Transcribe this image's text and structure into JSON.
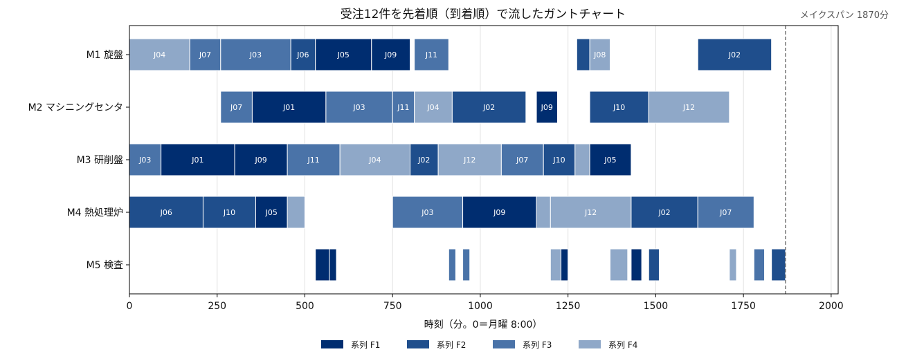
{
  "chart_data": {
    "type": "gantt",
    "title": "受注12件を先着順（到着順）で流したガントチャート",
    "xlabel": "時刻（分。0＝月曜 8:00）",
    "ylabel": "",
    "xlim": [
      0,
      2020
    ],
    "x_ticks": [
      0,
      250,
      500,
      750,
      1000,
      1250,
      1500,
      1750,
      2000
    ],
    "x_tick_labels": [
      "0",
      "250",
      "500",
      "750",
      "1000",
      "1250",
      "1500",
      "1750",
      "2000"
    ],
    "grid": "vertical",
    "legend_position": "bottom-center",
    "makespan": 1870,
    "makespan_label": "メイクスパン 1870分",
    "families": [
      {
        "id": "F1",
        "name": "系列 F1",
        "color": "#002d70",
        "text_color": "#ffffff"
      },
      {
        "id": "F2",
        "name": "系列 F2",
        "color": "#1f4e8c",
        "text_color": "#ffffff"
      },
      {
        "id": "F3",
        "name": "系列 F3",
        "color": "#4a73a8",
        "text_color": "#ffffff"
      },
      {
        "id": "F4",
        "name": "系列 F4",
        "color": "#8fa8c8",
        "text_color": "#ffffff"
      }
    ],
    "machines": [
      {
        "name": "M1 旋盤",
        "tasks": [
          {
            "job": "J04",
            "family": "F4",
            "start": 0,
            "end": 172
          },
          {
            "job": "J07",
            "family": "F3",
            "start": 172,
            "end": 260
          },
          {
            "job": "J03",
            "family": "F3",
            "start": 260,
            "end": 460
          },
          {
            "job": "J06",
            "family": "F2",
            "start": 460,
            "end": 530
          },
          {
            "job": "J05",
            "family": "F1",
            "start": 530,
            "end": 690
          },
          {
            "job": "J09",
            "family": "F1",
            "start": 690,
            "end": 800
          },
          {
            "job": "J11",
            "family": "F3",
            "start": 812,
            "end": 910
          },
          {
            "job": "",
            "family": "F2",
            "start": 1275,
            "end": 1312
          },
          {
            "job": "J08",
            "family": "F4",
            "start": 1312,
            "end": 1370
          },
          {
            "job": "J02",
            "family": "F2",
            "start": 1620,
            "end": 1830
          }
        ]
      },
      {
        "name": "M2 マシニングセンタ",
        "tasks": [
          {
            "job": "J07",
            "family": "F3",
            "start": 260,
            "end": 350
          },
          {
            "job": "J01",
            "family": "F1",
            "start": 350,
            "end": 560
          },
          {
            "job": "J03",
            "family": "F3",
            "start": 560,
            "end": 750
          },
          {
            "job": "J11",
            "family": "F3",
            "start": 750,
            "end": 812
          },
          {
            "job": "J04",
            "family": "F4",
            "start": 812,
            "end": 920
          },
          {
            "job": "J02",
            "family": "F2",
            "start": 920,
            "end": 1130
          },
          {
            "job": "J09",
            "family": "F1",
            "start": 1160,
            "end": 1220
          },
          {
            "job": "J10",
            "family": "F2",
            "start": 1312,
            "end": 1480
          },
          {
            "job": "J12",
            "family": "F4",
            "start": 1480,
            "end": 1710
          }
        ]
      },
      {
        "name": "M3 研削盤",
        "tasks": [
          {
            "job": "J03",
            "family": "F3",
            "start": 0,
            "end": 90
          },
          {
            "job": "J01",
            "family": "F1",
            "start": 90,
            "end": 300
          },
          {
            "job": "J09",
            "family": "F1",
            "start": 300,
            "end": 450
          },
          {
            "job": "J11",
            "family": "F3",
            "start": 450,
            "end": 600
          },
          {
            "job": "J04",
            "family": "F4",
            "start": 600,
            "end": 800
          },
          {
            "job": "J02",
            "family": "F2",
            "start": 800,
            "end": 880
          },
          {
            "job": "J12",
            "family": "F4",
            "start": 880,
            "end": 1060
          },
          {
            "job": "J07",
            "family": "F3",
            "start": 1060,
            "end": 1180
          },
          {
            "job": "J10",
            "family": "F2",
            "start": 1180,
            "end": 1270
          },
          {
            "job": "",
            "family": "F4",
            "start": 1270,
            "end": 1312
          },
          {
            "job": "J05",
            "family": "F1",
            "start": 1312,
            "end": 1430
          }
        ]
      },
      {
        "name": "M4 熱処理炉",
        "tasks": [
          {
            "job": "J06",
            "family": "F2",
            "start": 0,
            "end": 210
          },
          {
            "job": "J10",
            "family": "F2",
            "start": 210,
            "end": 360
          },
          {
            "job": "J05",
            "family": "F1",
            "start": 360,
            "end": 450
          },
          {
            "job": "",
            "family": "F4",
            "start": 450,
            "end": 500
          },
          {
            "job": "J03",
            "family": "F3",
            "start": 750,
            "end": 950
          },
          {
            "job": "J09",
            "family": "F1",
            "start": 950,
            "end": 1160
          },
          {
            "job": "",
            "family": "F4",
            "start": 1160,
            "end": 1200
          },
          {
            "job": "J12",
            "family": "F4",
            "start": 1200,
            "end": 1430
          },
          {
            "job": "J02",
            "family": "F2",
            "start": 1430,
            "end": 1620
          },
          {
            "job": "J07",
            "family": "F3",
            "start": 1620,
            "end": 1780
          }
        ]
      },
      {
        "name": "M5 検査",
        "tasks": [
          {
            "job": "",
            "family": "F1",
            "start": 530,
            "end": 570
          },
          {
            "job": "",
            "family": "F1",
            "start": 570,
            "end": 590
          },
          {
            "job": "",
            "family": "F3",
            "start": 910,
            "end": 930
          },
          {
            "job": "",
            "family": "F3",
            "start": 950,
            "end": 970
          },
          {
            "job": "",
            "family": "F4",
            "start": 1200,
            "end": 1230
          },
          {
            "job": "",
            "family": "F1",
            "start": 1230,
            "end": 1250
          },
          {
            "job": "",
            "family": "F4",
            "start": 1370,
            "end": 1420
          },
          {
            "job": "",
            "family": "F1",
            "start": 1430,
            "end": 1460
          },
          {
            "job": "",
            "family": "F2",
            "start": 1480,
            "end": 1510
          },
          {
            "job": "",
            "family": "F4",
            "start": 1710,
            "end": 1730
          },
          {
            "job": "",
            "family": "F3",
            "start": 1780,
            "end": 1810
          },
          {
            "job": "",
            "family": "F2",
            "start": 1830,
            "end": 1870
          }
        ]
      }
    ]
  }
}
